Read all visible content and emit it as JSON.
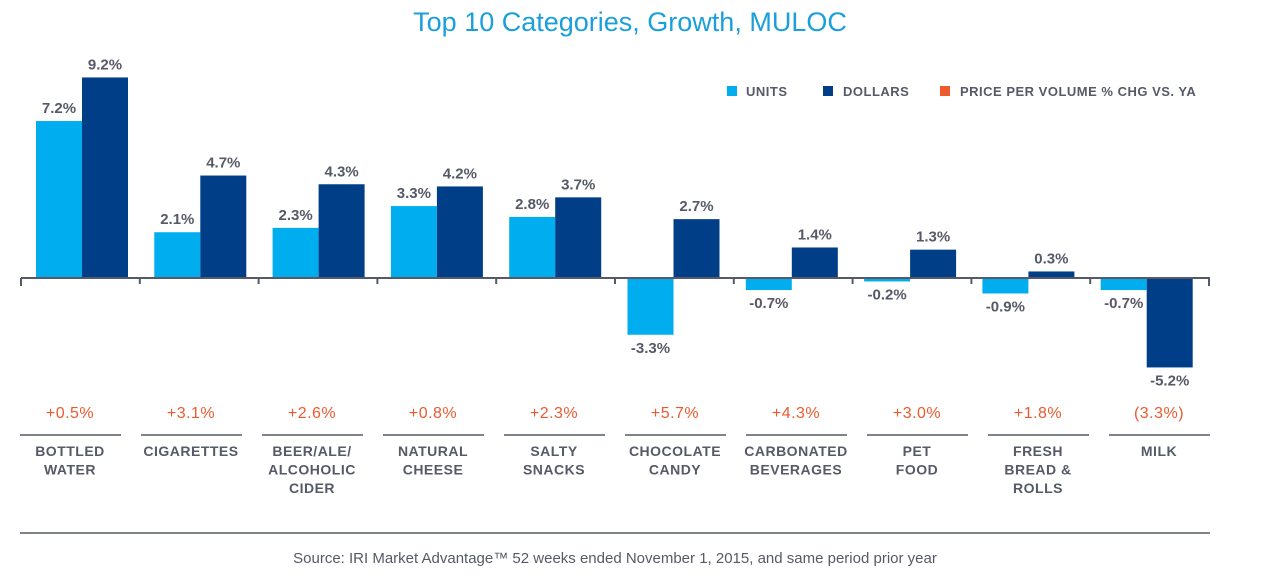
{
  "chart_data": {
    "type": "bar",
    "title": "Top 10 Categories, Growth, MULOC",
    "categories": [
      [
        "BOTTLED",
        "WATER"
      ],
      [
        "CIGARETTES"
      ],
      [
        "BEER/ALE/",
        "ALCOHOLIC",
        "CIDER"
      ],
      [
        "NATURAL",
        "CHEESE"
      ],
      [
        "SALTY",
        "SNACKS"
      ],
      [
        "CHOCOLATE",
        "CANDY"
      ],
      [
        "CARBONATED",
        "BEVERAGES"
      ],
      [
        "PET",
        "FOOD"
      ],
      [
        "FRESH",
        "BREAD &",
        "ROLLS"
      ],
      [
        "MILK"
      ]
    ],
    "series": [
      {
        "name": "UNITS",
        "color": "#00aeef",
        "values": [
          7.2,
          2.1,
          2.3,
          3.3,
          2.8,
          -3.3,
          -0.7,
          -0.2,
          -0.9,
          -0.7
        ],
        "labels": [
          "7.2%",
          "2.1%",
          "2.3%",
          "3.3%",
          "2.8%",
          "-3.3%",
          "-0.7%",
          "-0.2%",
          "-0.9%",
          "-0.7%"
        ]
      },
      {
        "name": "DOLLARS",
        "color": "#003f87",
        "values": [
          9.2,
          4.7,
          4.3,
          4.2,
          3.7,
          2.7,
          1.4,
          1.3,
          0.3,
          -5.2
        ],
        "labels": [
          "9.2%",
          "4.7%",
          "4.3%",
          "4.2%",
          "3.7%",
          "2.7%",
          "1.4%",
          "1.3%",
          "0.3%",
          "-5.2%"
        ]
      }
    ],
    "price_series": {
      "name": "PRICE PER VOLUME % CHG VS. YA",
      "color": "#ec5a2e",
      "values": [
        0.5,
        3.1,
        2.6,
        0.8,
        2.3,
        5.7,
        4.3,
        3.0,
        1.8,
        -3.3
      ],
      "labels": [
        "+0.5%",
        "+3.1%",
        "+2.6%",
        "+0.8%",
        "+2.3%",
        "+5.7%",
        "+4.3%",
        "+3.0%",
        "+1.8%",
        "(3.3%)"
      ]
    },
    "legend_position": "top-right",
    "grid": false,
    "source": "Source:  IRI Market Advantage™ 52 weeks ended November 1, 2015, and same period prior year"
  }
}
